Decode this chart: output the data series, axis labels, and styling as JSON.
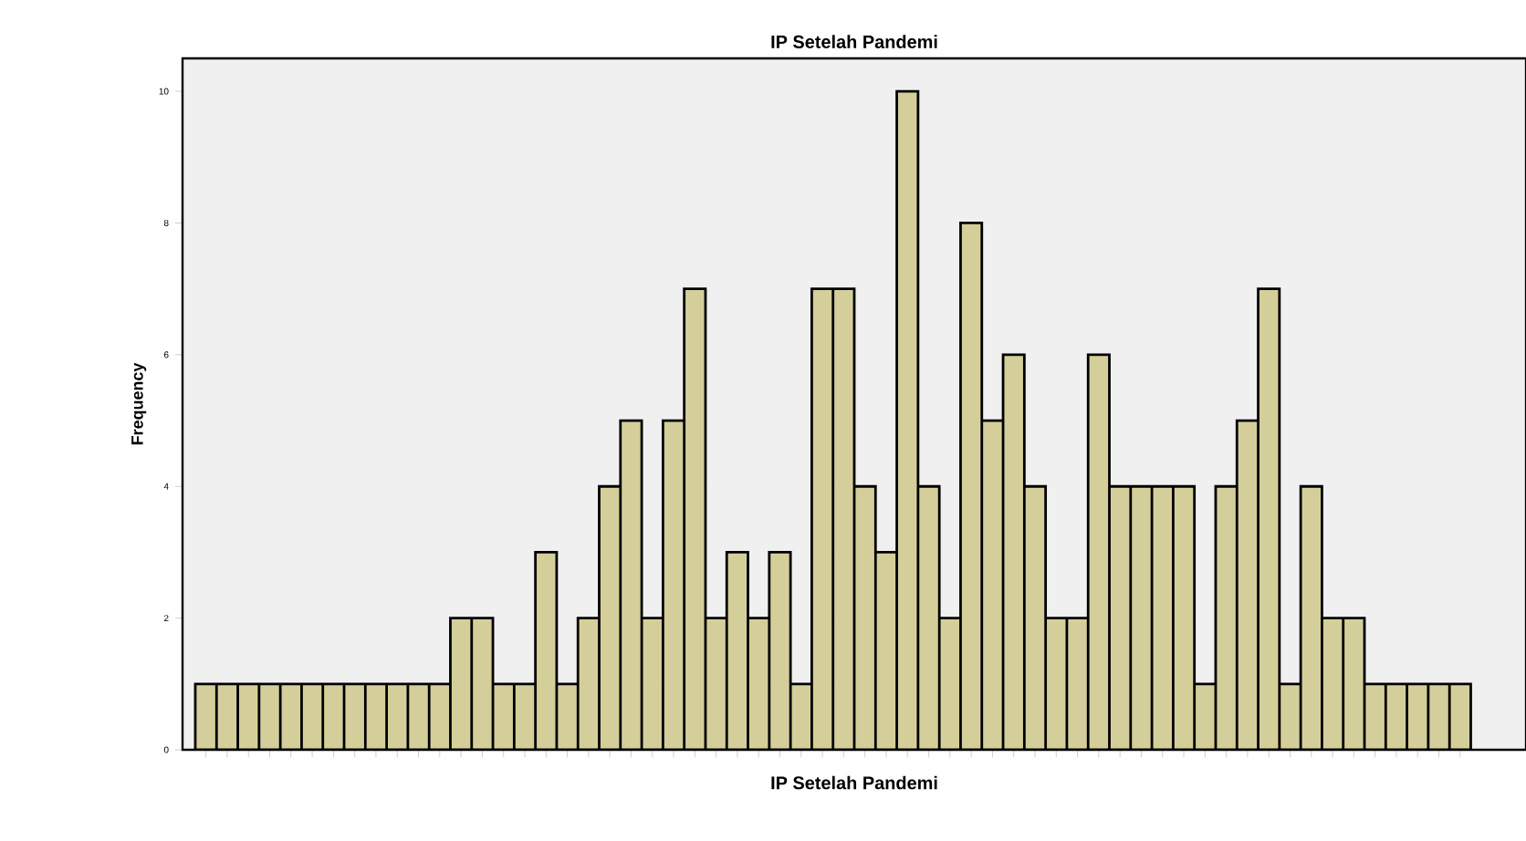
{
  "chart_data": {
    "type": "bar",
    "title": "IP Setelah Pandemi",
    "xlabel": "IP Setelah Pandemi",
    "ylabel": "Frequency",
    "categories": [
      null,
      null,
      null,
      null,
      null,
      null,
      null,
      null,
      null,
      null,
      null,
      null,
      null,
      null,
      null,
      null,
      null,
      null,
      null,
      null,
      null,
      null,
      null,
      null,
      null,
      null,
      null,
      null,
      null,
      null,
      null,
      null,
      null,
      null,
      null,
      null,
      null,
      null,
      null,
      null,
      null,
      null,
      null,
      null,
      null,
      null,
      null,
      null,
      null,
      null,
      null,
      null,
      null,
      null,
      null,
      null,
      null,
      null,
      null,
      null
    ],
    "values": [
      1,
      1,
      1,
      1,
      1,
      1,
      1,
      1,
      1,
      1,
      1,
      1,
      2,
      2,
      1,
      1,
      3,
      1,
      2,
      4,
      5,
      2,
      5,
      7,
      2,
      3,
      2,
      3,
      1,
      7,
      7,
      4,
      3,
      10,
      4,
      2,
      8,
      5,
      6,
      4,
      2,
      2,
      6,
      4,
      4,
      4,
      4,
      1,
      4,
      5,
      7,
      1,
      4,
      2,
      2,
      1,
      1,
      1,
      1,
      1
    ],
    "color": "#d4cf9a",
    "ylim": [
      0,
      10.5
    ],
    "yticks": [
      0,
      2,
      4,
      6,
      8,
      10
    ]
  }
}
